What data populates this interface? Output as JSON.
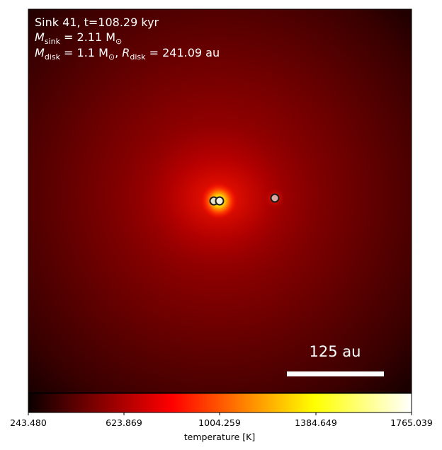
{
  "info": {
    "line1": "Sink 41, t=108.29 kyr",
    "m_sink_symbol": "M",
    "m_sink_sub": "sink",
    "m_sink_value": " = 2.11 M",
    "m_disk_symbol": "M",
    "m_disk_sub": "disk",
    "m_disk_value": " = 1.1 M",
    "r_disk_symbol": "R",
    "r_disk_sub": "disk",
    "r_disk_value": " = 241.09 au",
    "solar_symbol": "⊙",
    "separator": ", "
  },
  "scale_bar": {
    "label": "125 au",
    "length_au": 125
  },
  "colorbar": {
    "label": "temperature [K]",
    "colormap": "hot",
    "range": [
      243.48,
      1765.039
    ],
    "ticks": [
      "243.480",
      "623.869",
      "1004.259",
      "1384.649",
      "1765.039"
    ]
  },
  "colors": {
    "background_dark": "#1e0000",
    "background_mid": "#6a0000",
    "hot_core": "#ffff60",
    "sink_fill_primary": "#f2ecd8",
    "sink_fill_secondary": "#d9a8a0",
    "sink_outline": "#1a1a1a"
  },
  "sinks": [
    {
      "name": "sink-a"
    },
    {
      "name": "sink-b"
    },
    {
      "name": "sink-c"
    }
  ]
}
